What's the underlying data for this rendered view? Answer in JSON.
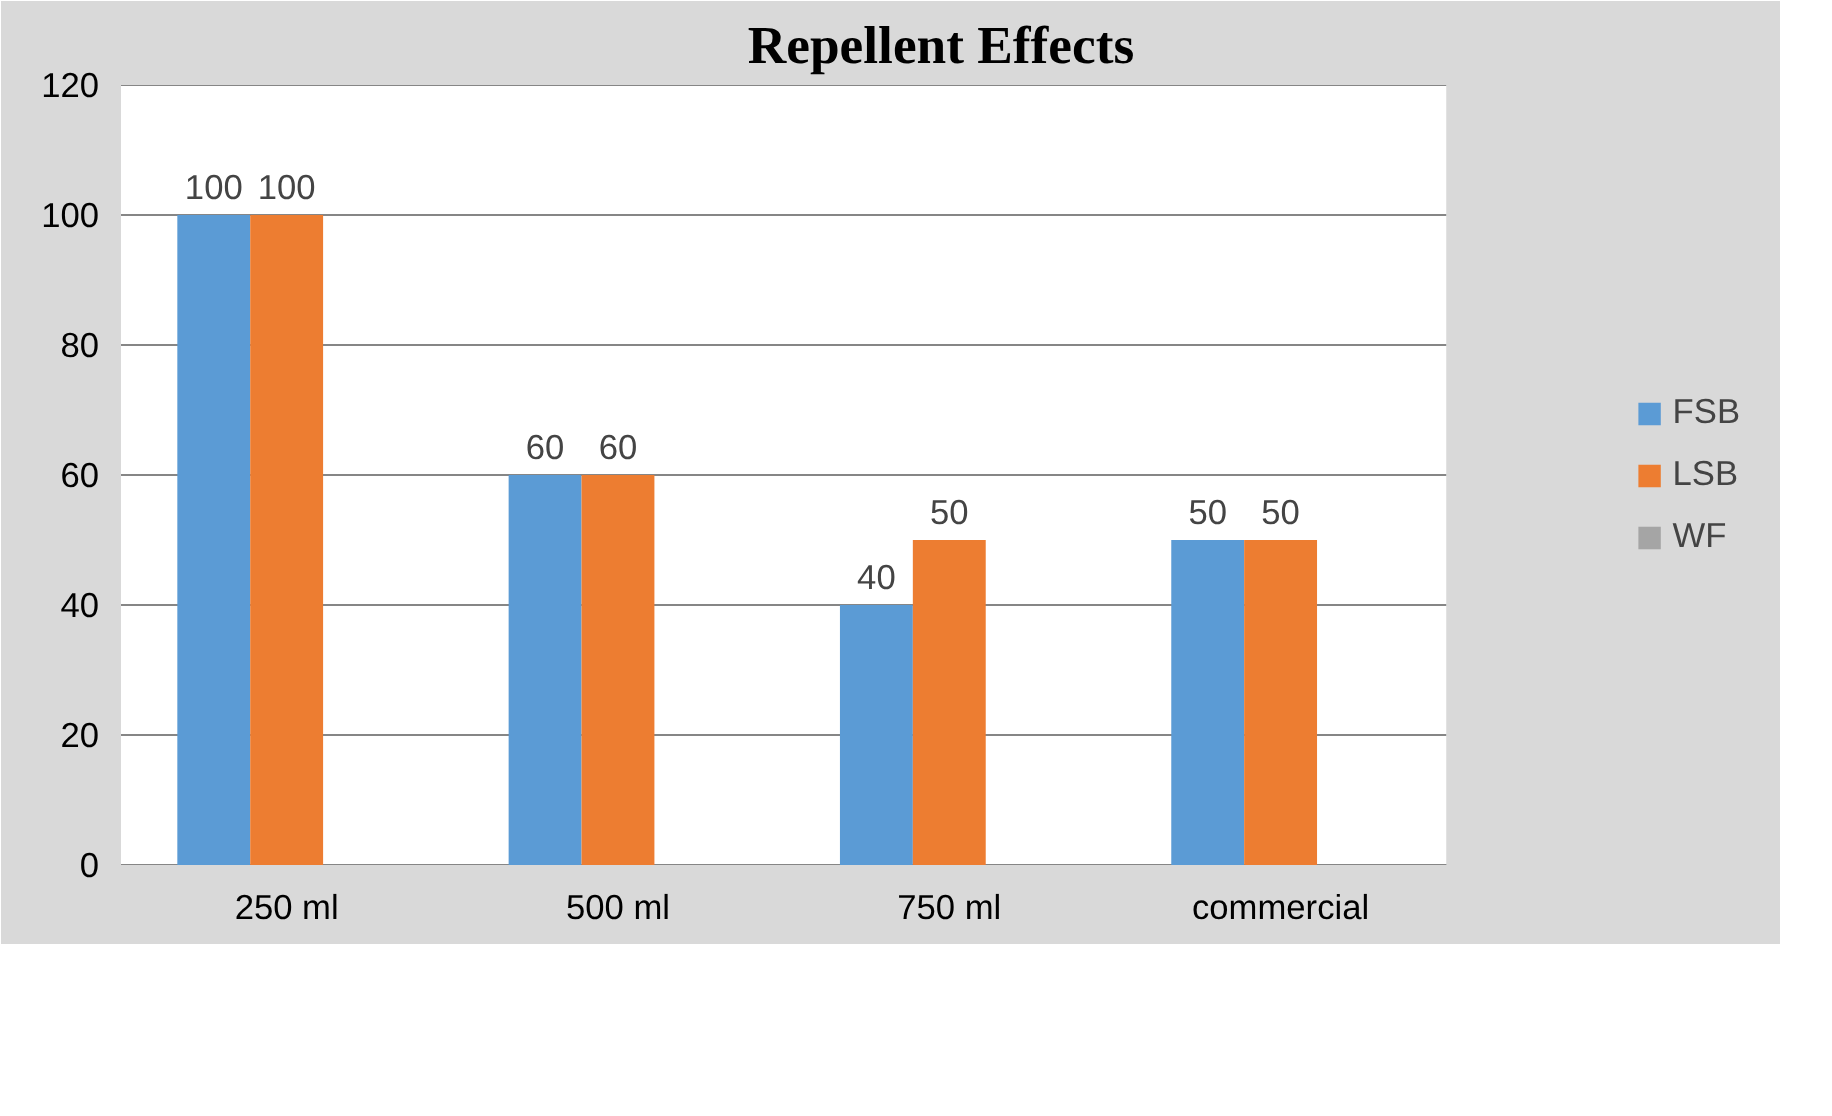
{
  "chart_data": {
    "type": "bar",
    "title": "Repellent Effects",
    "categories": [
      "250 ml",
      "500 ml",
      "750 ml",
      "commercial"
    ],
    "series": [
      {
        "name": "FSB",
        "color": "#5b9bd5",
        "values": [
          100,
          60,
          40,
          50
        ]
      },
      {
        "name": "LSB",
        "color": "#ed7d31",
        "values": [
          100,
          60,
          50,
          50
        ]
      },
      {
        "name": "WF",
        "color": "#a5a5a5",
        "values": [
          null,
          null,
          null,
          null
        ]
      }
    ],
    "ylim": [
      0,
      120
    ],
    "yticks": [
      0,
      20,
      40,
      60,
      80,
      100,
      120
    ],
    "grid": "y",
    "legend": "right",
    "data_labels": true
  }
}
